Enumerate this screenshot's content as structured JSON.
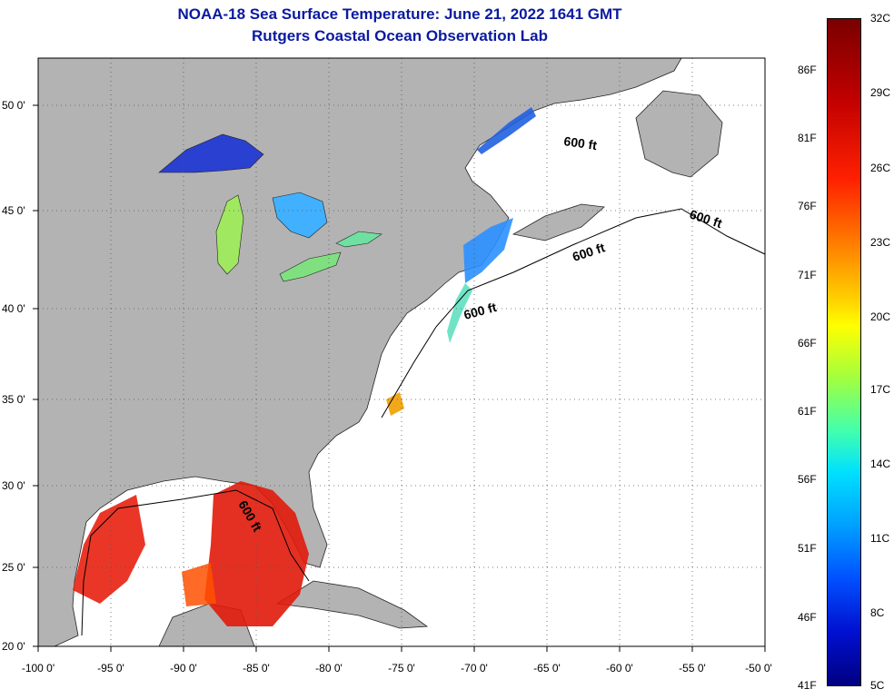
{
  "title": {
    "line1": "NOAA-18 Sea Surface Temperature:  June 21, 2022 1641 GMT",
    "line2": "Rutgers Coastal Ocean Observation Lab"
  },
  "map": {
    "lat_labels": [
      "20 0'",
      "25 0'",
      "30 0'",
      "35 0'",
      "40 0'",
      "45 0'",
      "50 0'"
    ],
    "lon_labels": [
      "-100 0'",
      "-95 0'",
      "-90 0'",
      "-85 0'",
      "-80 0'",
      "-75 0'",
      "-70 0'",
      "-65 0'",
      "-60 0'",
      "-55 0'",
      "-50 0'"
    ],
    "contour_labels": [
      "600 ft",
      "600 ft",
      "600 ft",
      "600 ft",
      "600 ft"
    ],
    "colors": {
      "land": "#b3b3b3",
      "ocean": "#ffffff",
      "grid": "#555555"
    }
  },
  "colorbar": {
    "celsius": [
      "32C",
      "29C",
      "26C",
      "23C",
      "20C",
      "17C",
      "14C",
      "11C",
      "8C",
      "5C"
    ],
    "fahrenheit": [
      "86F",
      "81F",
      "76F",
      "71F",
      "66F",
      "61F",
      "56F",
      "51F",
      "46F",
      "41F"
    ]
  }
}
